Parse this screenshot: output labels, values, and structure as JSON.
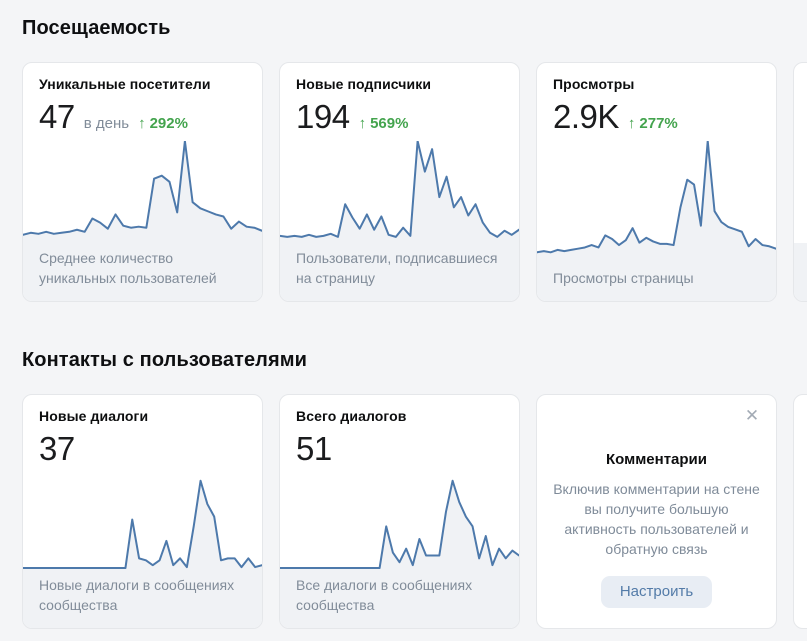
{
  "colors": {
    "page_bg": "#f4f5f7",
    "card_bg": "#ffffff",
    "card_border": "#e5e7ea",
    "chart_line": "#4d79ab",
    "chart_fill": "#f0f2f5",
    "growth_green": "#44a44e",
    "muted_text": "#818c99",
    "button_bg": "#e8edf4",
    "button_text": "#537ba8"
  },
  "icons": {
    "arrow_up": "↑",
    "close": "✕"
  },
  "sections": [
    {
      "title": "Посещаемость"
    },
    {
      "title": "Контакты с пользователями"
    }
  ],
  "cards": [
    {
      "title": "Уникальные посетители",
      "value": "47",
      "suffix": "в день",
      "delta": "292%",
      "caption": "Среднее количество уникальных пользователей"
    },
    {
      "title": "Новые подписчики",
      "value": "194",
      "delta": "569%",
      "caption": "Пользователи, подписавшиеся на страницу"
    },
    {
      "title": "Просмотры",
      "value": "2.9K",
      "delta": "277%",
      "caption": "Просмотры страницы"
    },
    {
      "title": "Новые диалоги",
      "value": "37",
      "caption": "Новые диалоги в сообщениях сообщества"
    },
    {
      "title": "Всего диалогов",
      "value": "51",
      "caption": "Все диалоги в сообщениях сообщества"
    }
  ],
  "comments": {
    "title": "Комментарии",
    "body": "Включив комментарии на стене вы получите большую активность пользователей и обратную связь",
    "button": "Настроить"
  },
  "chart_data": [
    {
      "type": "area",
      "title": "Уникальные посетители (спарклайн)",
      "ylabel": "",
      "xlabel": "",
      "ylim": [
        0,
        100
      ],
      "grid": false,
      "axes_visible": false,
      "values": [
        8,
        10,
        9,
        11,
        9,
        10,
        11,
        13,
        11,
        24,
        20,
        14,
        28,
        17,
        15,
        16,
        15,
        63,
        66,
        60,
        30,
        100,
        40,
        34,
        31,
        28,
        26,
        14,
        21,
        16,
        15,
        12
      ]
    },
    {
      "type": "area",
      "title": "Новые подписчики (спарклайн)",
      "ylabel": "",
      "xlabel": "",
      "ylim": [
        0,
        100
      ],
      "grid": false,
      "axes_visible": false,
      "values": [
        7,
        6,
        7,
        6,
        8,
        6,
        7,
        9,
        6,
        38,
        25,
        14,
        28,
        13,
        26,
        8,
        6,
        15,
        7,
        100,
        70,
        92,
        45,
        65,
        35,
        45,
        27,
        38,
        20,
        10,
        6,
        12,
        8,
        13
      ]
    },
    {
      "type": "area",
      "title": "Просмотры (спарклайн)",
      "ylabel": "",
      "xlabel": "",
      "ylim": [
        0,
        100
      ],
      "grid": false,
      "axes_visible": false,
      "values": [
        8,
        9,
        8,
        10,
        9,
        10,
        11,
        12,
        14,
        12,
        22,
        19,
        14,
        18,
        28,
        16,
        20,
        17,
        15,
        15,
        14,
        45,
        68,
        64,
        30,
        100,
        42,
        33,
        29,
        27,
        25,
        13,
        19,
        14,
        13,
        11
      ]
    },
    {
      "type": "area",
      "title": "Новые диалоги (спарклайн)",
      "ylabel": "",
      "xlabel": "",
      "ylim": [
        0,
        100
      ],
      "grid": false,
      "axes_visible": false,
      "values": [
        2,
        2,
        2,
        2,
        2,
        2,
        2,
        2,
        2,
        2,
        2,
        2,
        2,
        2,
        2,
        2,
        52,
        12,
        10,
        5,
        10,
        30,
        5,
        12,
        3,
        45,
        92,
        68,
        55,
        10,
        12,
        12,
        3,
        12,
        3,
        5
      ]
    },
    {
      "type": "area",
      "title": "Всего диалогов (спарклайн)",
      "ylabel": "",
      "xlabel": "",
      "ylim": [
        0,
        100
      ],
      "grid": false,
      "axes_visible": false,
      "values": [
        2,
        2,
        2,
        2,
        2,
        2,
        2,
        2,
        2,
        2,
        2,
        2,
        2,
        2,
        2,
        2,
        45,
        18,
        8,
        22,
        5,
        32,
        15,
        15,
        15,
        60,
        92,
        70,
        55,
        45,
        12,
        35,
        5,
        22,
        12,
        20,
        15
      ]
    }
  ]
}
